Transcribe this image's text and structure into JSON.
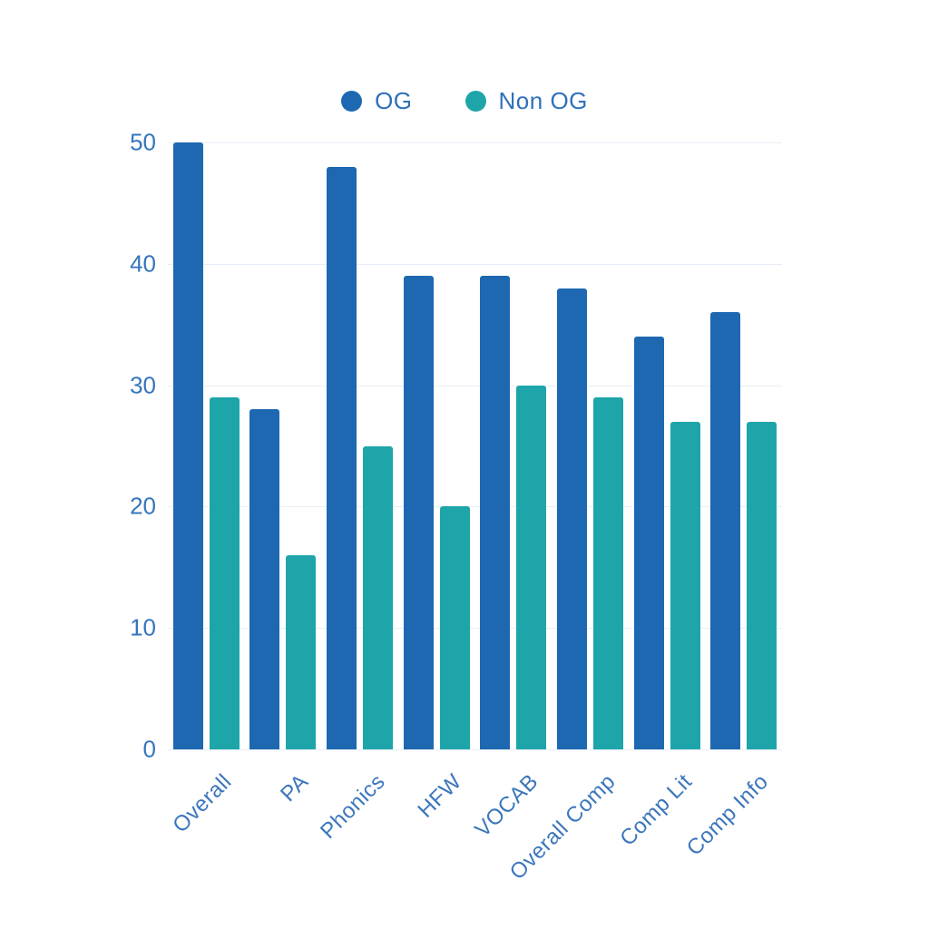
{
  "legend": {
    "items": [
      {
        "label": "OG",
        "color": "#1e68b2"
      },
      {
        "label": "Non OG",
        "color": "#1ea5a9"
      }
    ]
  },
  "chart_data": {
    "type": "bar",
    "title": "",
    "xlabel": "",
    "ylabel": "",
    "categories": [
      "Overall",
      "PA",
      "Phonics",
      "HFW",
      "VOCAB",
      "Overall Comp",
      "Comp Lit",
      "Comp Info"
    ],
    "series": [
      {
        "name": "OG",
        "color": "#1e68b2",
        "values": [
          50,
          28,
          48,
          39,
          39,
          38,
          34,
          36
        ]
      },
      {
        "name": "Non OG",
        "color": "#1ea5a9",
        "values": [
          29,
          16,
          25,
          20,
          30,
          29,
          27,
          27
        ]
      }
    ],
    "ylim": [
      0,
      50
    ],
    "yticks": [
      0,
      10,
      20,
      30,
      40,
      50
    ],
    "grid": true,
    "legend_position": "top",
    "axis_text_color": "#3575bc",
    "grid_color": "#e8eef7",
    "background_color": "#ffffff"
  }
}
